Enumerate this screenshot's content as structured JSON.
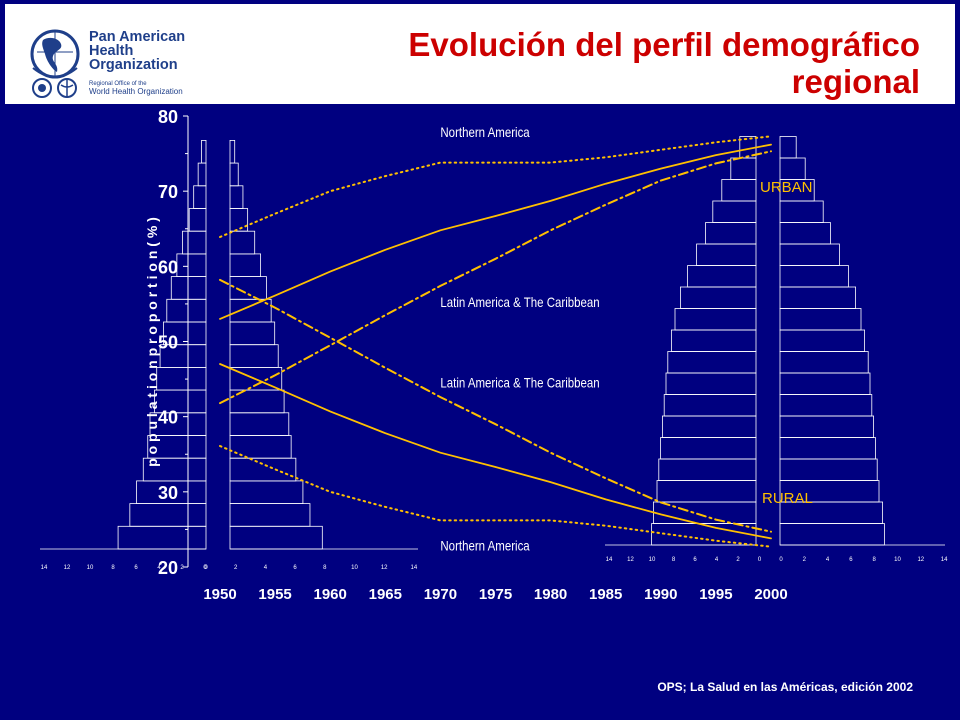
{
  "header": {
    "title_line1": "Evolución del perfil demográfico",
    "title_line2": "regional",
    "logo": {
      "name_lines": [
        "Pan American",
        "Health",
        "Organization"
      ],
      "sub_line1": "Regional Office of the",
      "sub_line2": "World Health Organization",
      "icon": "globe-americas-icon"
    }
  },
  "footer": {
    "source": "OPS; La Salud en las Américas, edición 2002"
  },
  "colors": {
    "background": "#000080",
    "title": "#cc0000",
    "lines": "#ffc000",
    "pyramid": "#ffffff"
  },
  "chart_data": {
    "type": "line",
    "title": "",
    "xlabel": "",
    "ylabel": "p o p u l a t i o n   p r o p o r t i o n  ( % )",
    "x": [
      1950,
      1955,
      1960,
      1965,
      1970,
      1975,
      1980,
      1985,
      1990,
      1995,
      2000
    ],
    "ylim": [
      20,
      80
    ],
    "yticks": [
      20,
      30,
      40,
      50,
      60,
      70,
      80
    ],
    "series": [
      {
        "name": "Northern America",
        "group": "urban",
        "style": "dotted",
        "values": [
          63.9,
          67,
          70,
          72,
          73.8,
          73.8,
          73.8,
          74.5,
          75.5,
          76.5,
          77.3
        ]
      },
      {
        "name": "",
        "group": "urban",
        "style": "solid",
        "values": [
          53,
          56.1,
          59.3,
          62.2,
          64.8,
          66.7,
          68.7,
          71,
          73,
          74.8,
          76.2
        ]
      },
      {
        "name": "Latin America & The Caribbean",
        "group": "urban",
        "style": "dashdot",
        "values": [
          41.8,
          45.5,
          49.5,
          53.5,
          57.4,
          61,
          64.8,
          68.2,
          71.4,
          73.7,
          75.3
        ]
      },
      {
        "name": "Latin America & The Caribbean",
        "group": "rural",
        "style": "dashdot",
        "values": [
          58.2,
          54.5,
          50.5,
          46.5,
          42.6,
          39,
          35.2,
          31.8,
          28.6,
          26.3,
          24.7
        ]
      },
      {
        "name": "",
        "group": "rural",
        "style": "solid",
        "values": [
          47,
          43.9,
          40.7,
          37.8,
          35.2,
          33.3,
          31.3,
          29,
          27,
          25.2,
          23.8
        ]
      },
      {
        "name": "Northern America",
        "group": "rural",
        "style": "dotted",
        "values": [
          36.1,
          33,
          30,
          28,
          26.2,
          26.2,
          26.2,
          25.5,
          24.5,
          23.5,
          22.7
        ]
      }
    ],
    "annotations": [
      {
        "text": "Northern America",
        "x": 1970,
        "y": 77.2
      },
      {
        "text": "Latin America & The Caribbean",
        "x": 1970,
        "y": 54.6
      },
      {
        "text": "Latin America & The Caribbean",
        "x": 1970,
        "y": 43.9
      },
      {
        "text": "Northern America",
        "x": 1970,
        "y": 22.2
      }
    ],
    "region_labels": [
      {
        "text": "URBAN",
        "color": "#ffc000"
      },
      {
        "text": "RURAL",
        "color": "#ffc000"
      }
    ],
    "pyramid_tick_labels_1950": [
      "14",
      "12",
      "10",
      "8",
      "6",
      "4",
      "2",
      "0",
      "0",
      "2",
      "4",
      "6",
      "8",
      "10",
      "12",
      "14"
    ],
    "pyramid_tick_labels_2000": [
      "14",
      "12",
      "10",
      "8",
      "6",
      "4",
      "2",
      "0",
      "0",
      "2",
      "4",
      "6",
      "8",
      "10",
      "12",
      "14"
    ]
  }
}
